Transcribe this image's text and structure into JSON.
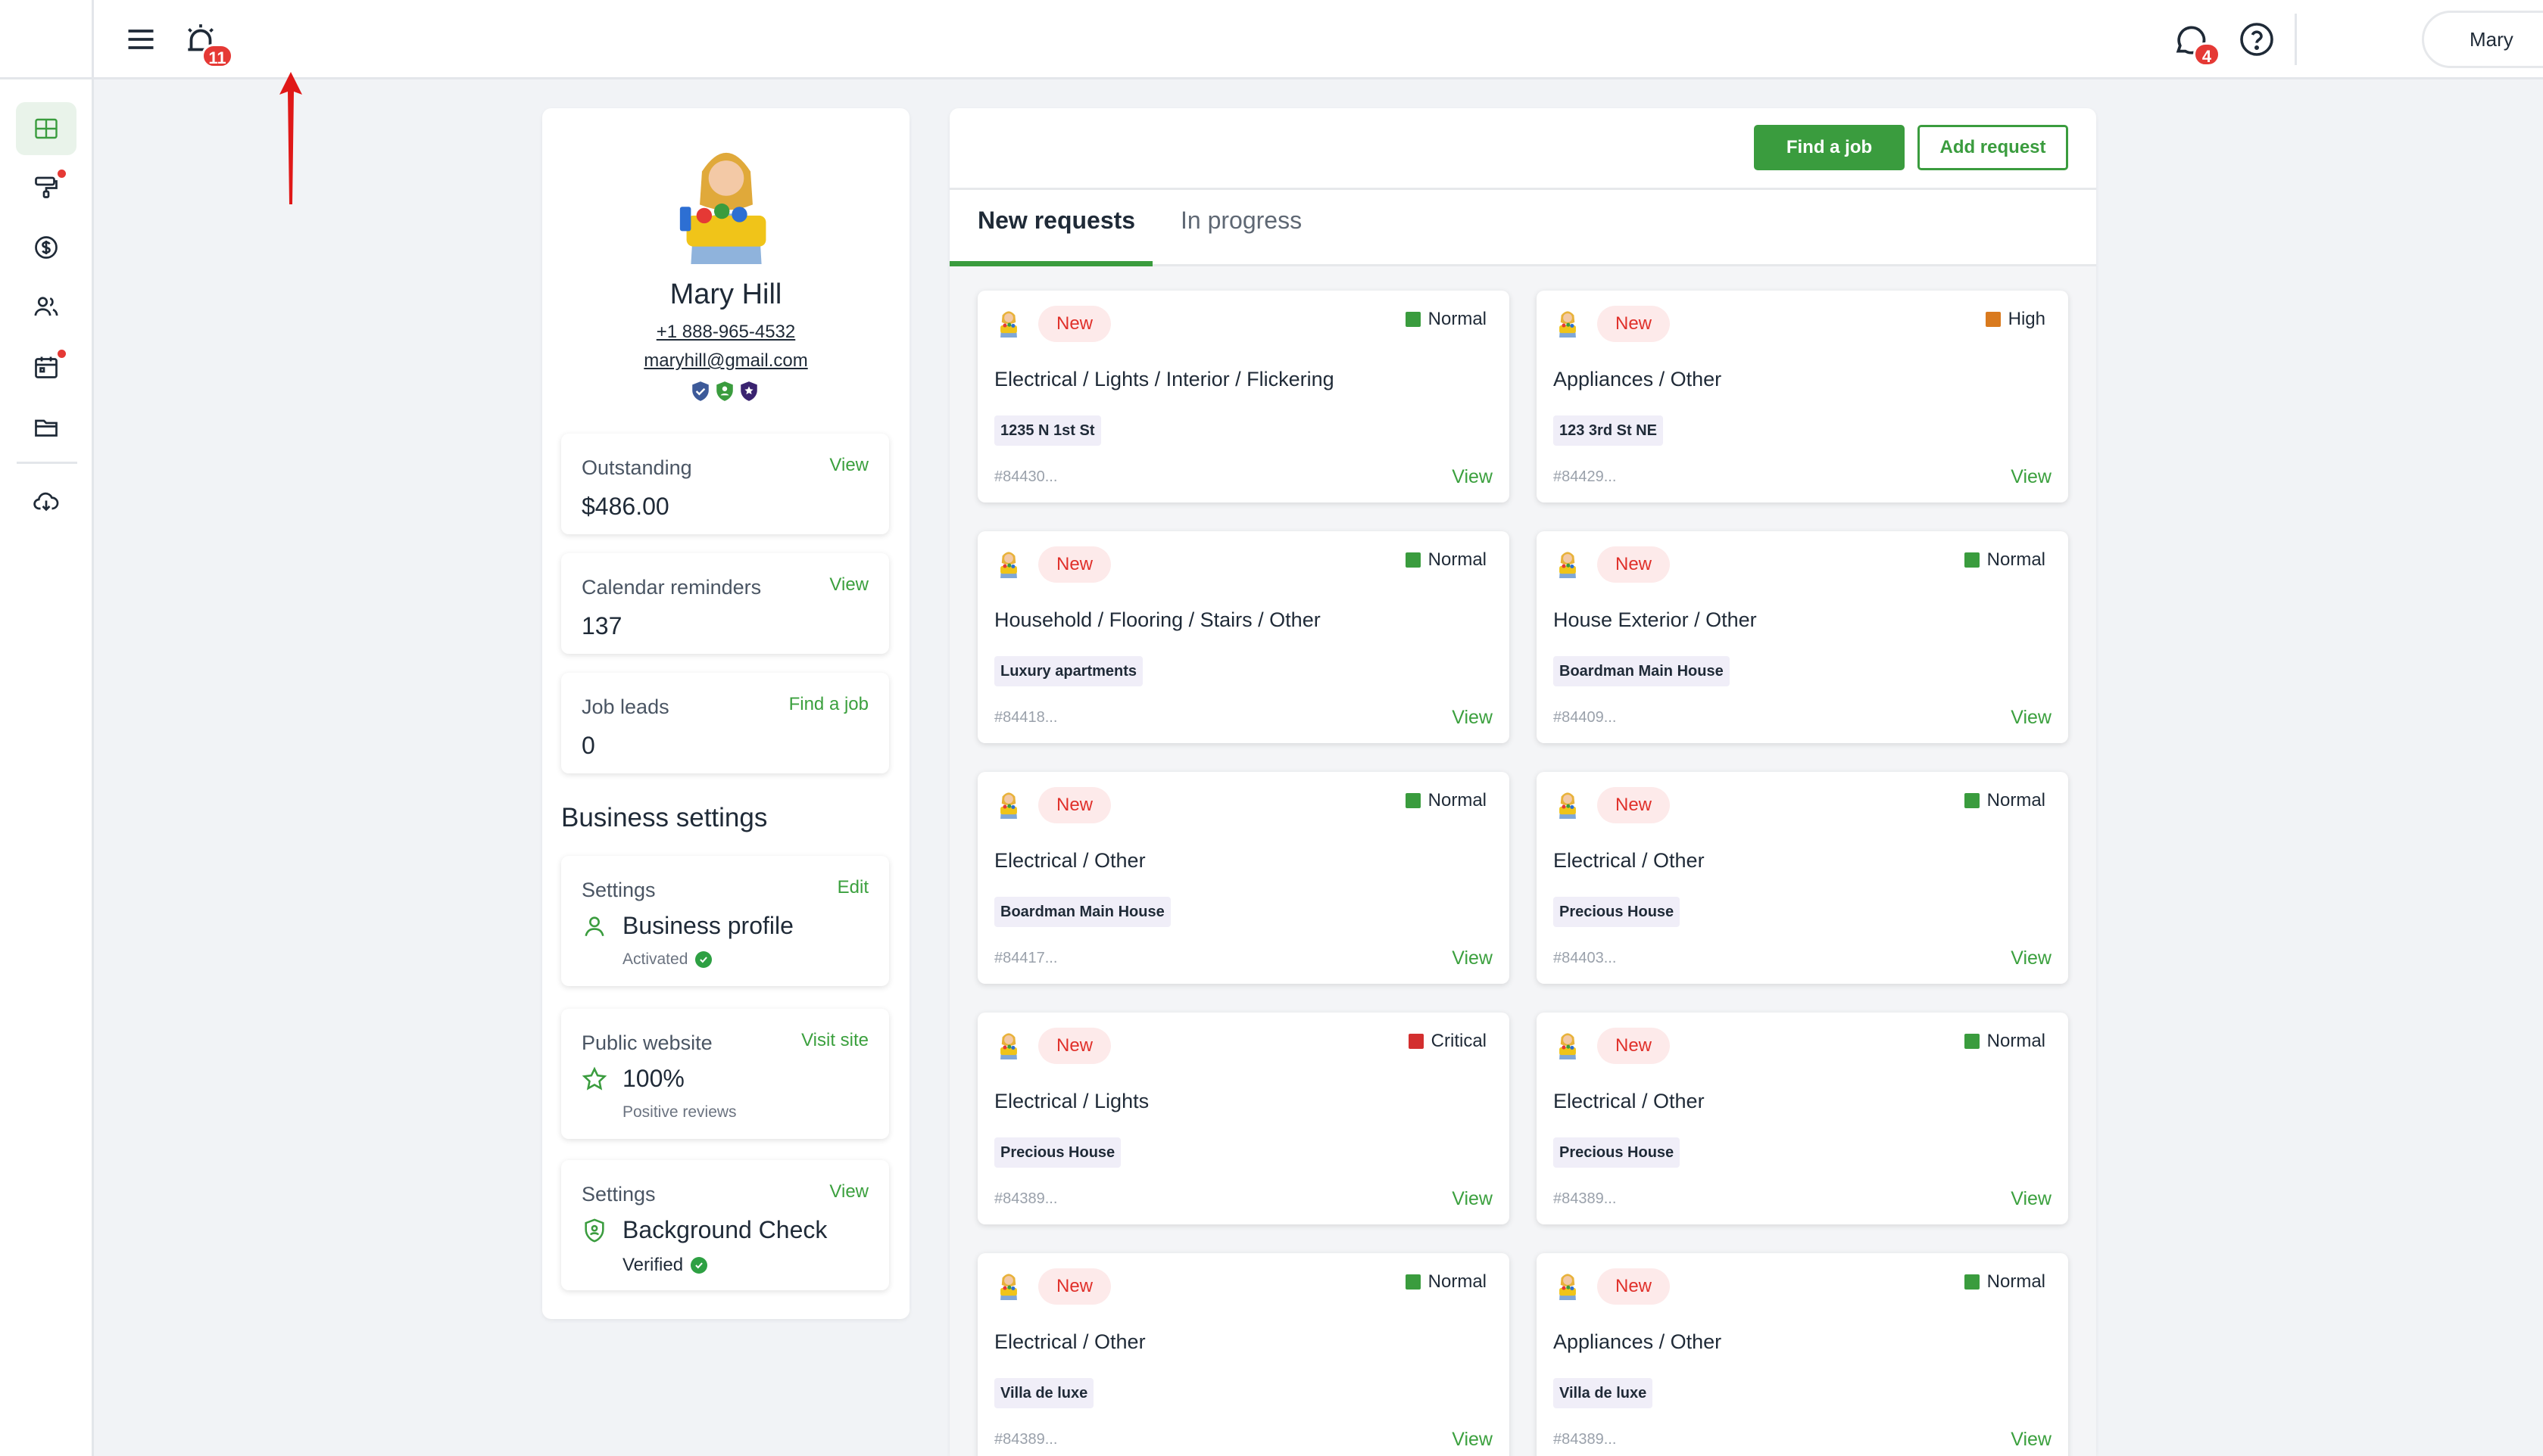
{
  "header": {
    "alarm_badge": "11",
    "chat_badge": "4",
    "user_name": "Mary"
  },
  "profile": {
    "name": "Mary Hill",
    "phone": "+1 888-965-4532",
    "email": "maryhill@gmail.com",
    "stats": [
      {
        "label": "Outstanding",
        "link": "View",
        "value": "$486.00"
      },
      {
        "label": "Calendar reminders",
        "link": "View",
        "value": "137"
      },
      {
        "label": "Job leads",
        "link": "Find a job",
        "value": "0"
      }
    ],
    "business_title": "Business settings",
    "settings": [
      {
        "label": "Settings",
        "link": "Edit",
        "value": "Business profile",
        "sub": "Activated",
        "icon": "person-icon"
      },
      {
        "label": "Public website",
        "link": "Visit site",
        "value": "100%",
        "sub": "Positive reviews",
        "icon": "star-icon"
      },
      {
        "label": "Settings",
        "link": "View",
        "value": "Background Check",
        "sub": "Verified",
        "icon": "shield-icon"
      }
    ]
  },
  "main": {
    "find_job_label": "Find a job",
    "add_request_label": "Add request",
    "tabs": [
      "New requests",
      "In progress"
    ],
    "requests": [
      {
        "status": "New",
        "priority": "Normal",
        "priority_color": "#3a9c3e",
        "title": "Electrical / Lights / Interior / Flickering",
        "tag": "1235 N 1st St",
        "id": "#84430...",
        "view": "View"
      },
      {
        "status": "New",
        "priority": "High",
        "priority_color": "#d97a1e",
        "title": "Appliances / Other",
        "tag": "123 3rd St NE",
        "id": "#84429...",
        "view": "View"
      },
      {
        "status": "New",
        "priority": "Normal",
        "priority_color": "#3a9c3e",
        "title": "Household / Flooring / Stairs / Other",
        "tag": "Luxury apartments",
        "id": "#84418...",
        "view": "View"
      },
      {
        "status": "New",
        "priority": "Normal",
        "priority_color": "#3a9c3e",
        "title": "House Exterior / Other",
        "tag": "Boardman Main House",
        "id": "#84409...",
        "view": "View"
      },
      {
        "status": "New",
        "priority": "Normal",
        "priority_color": "#3a9c3e",
        "title": "Electrical / Other",
        "tag": "Boardman Main House",
        "id": "#84417...",
        "view": "View"
      },
      {
        "status": "New",
        "priority": "Normal",
        "priority_color": "#3a9c3e",
        "title": "Electrical / Other",
        "tag": "Precious House",
        "id": "#84403...",
        "view": "View"
      },
      {
        "status": "New",
        "priority": "Critical",
        "priority_color": "#d32f2f",
        "title": "Electrical / Lights",
        "tag": "Precious House",
        "id": "#84389...",
        "view": "View"
      },
      {
        "status": "New",
        "priority": "Normal",
        "priority_color": "#3a9c3e",
        "title": "Electrical / Other",
        "tag": "Precious House",
        "id": "#84389...",
        "view": "View"
      },
      {
        "status": "New",
        "priority": "Normal",
        "priority_color": "#3a9c3e",
        "title": "Electrical / Other",
        "tag": "Villa de luxe",
        "id": "#84389...",
        "view": "View"
      },
      {
        "status": "New",
        "priority": "Normal",
        "priority_color": "#3a9c3e",
        "title": "Appliances / Other",
        "tag": "Villa de luxe",
        "id": "#84389...",
        "view": "View"
      }
    ]
  }
}
